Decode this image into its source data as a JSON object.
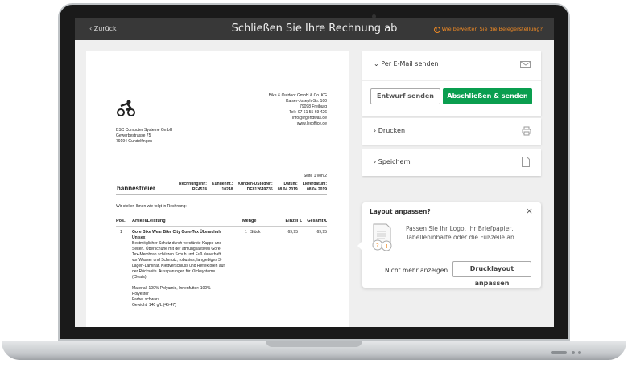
{
  "header": {
    "back_label": "Zurück",
    "title": "Schließen Sie Ihre Rechnung ab",
    "rating_link": "Wie bewerten Sie die Belegerstellung?"
  },
  "invoice": {
    "sender": [
      "Bike & Outdoor GmbH & Co. KG",
      "Kaiser-Joseph-Str. 100",
      "79098 Freiburg",
      "Tel.: 07 61 55 69 426",
      "info@irgendwas.de",
      "www.lexoffice.de"
    ],
    "recipient": [
      "BSC Computer Systeme GmbH",
      "Gewerbestrasse 75",
      "79194 Gundelfingen"
    ],
    "page_label": "Seite 1 von 2",
    "customer": "hannestreier",
    "meta": [
      {
        "label": "Rechnungsnr.:",
        "value": "RE4514"
      },
      {
        "label": "Kundennr.:",
        "value": "10248"
      },
      {
        "label": "Kunden-USt-IdNr.:",
        "value": "DE812649735"
      },
      {
        "label": "Datum:",
        "value": "08.04.2019"
      },
      {
        "label": "Lieferdatum:",
        "value": "08.04.2019"
      }
    ],
    "intro": "Wir stellen Ihnen wie folgt in Rechnung:",
    "columns": [
      "Pos.",
      "Artikel/Leistung",
      "Menge",
      "Einzel €",
      "Gesamt €"
    ],
    "item": {
      "pos": "1",
      "title": "Gore Bike Wear Bike City Gore-Tex Überschuh Unisex",
      "desc": "Bestmöglicher Schutz durch verstärkte Kappe und Seiten. Überschuhe mit der atmungsaktiven Gore-Tex-Membran schützen Schuh und Fuß dauerhaft vor Wasser und Schmutz; robustes, langlebiges 3-Lagen-Laminat. Klettverschluss und Reflektoren auf der Rückseite. Aussparungen für Klicksysteme (Cleats).",
      "material": "Material: 100% Polyamid, Innenfutter: 100% Polyester",
      "color": "Farbe: schwarz",
      "weight": "Gewicht: 140 g/L (45-47)",
      "qty": "1",
      "unit": "Stück",
      "single": "69,95",
      "total": "69,95"
    }
  },
  "panel": {
    "email": {
      "label": "Per E-Mail senden",
      "draft_button": "Entwurf senden",
      "finalize_button": "Abschließen & senden"
    },
    "print": {
      "label": "Drucken"
    },
    "save": {
      "label": "Speichern"
    }
  },
  "popover": {
    "title": "Layout anpassen?",
    "text": "Passen Sie Ihr Logo, Ihr Briefpapier, Tabelleninhalte oder die Fußzeile an.",
    "dismiss": "Nicht mehr anzeigen",
    "action": "Drucklayout anpassen"
  },
  "colors": {
    "accent": "#f08a24",
    "primary": "#0a9e4f",
    "header": "#383838"
  }
}
